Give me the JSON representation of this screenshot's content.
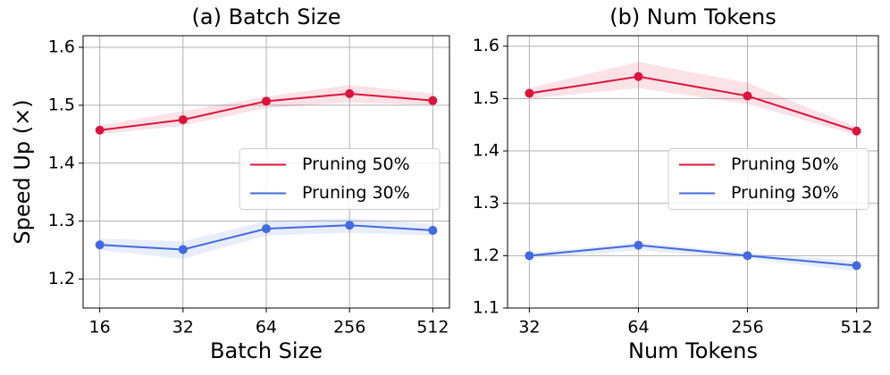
{
  "chart_data": [
    {
      "type": "line",
      "title": "(a) Batch Size",
      "xlabel": "Batch Size",
      "ylabel": "Speed Up (×)",
      "categories": [
        "16",
        "32",
        "64",
        "256",
        "512"
      ],
      "series": [
        {
          "name": "Pruning 50%",
          "color": "#dc143c",
          "values": [
            1.457,
            1.475,
            1.507,
            1.52,
            1.508
          ],
          "upper": [
            1.465,
            1.49,
            1.515,
            1.535,
            1.52
          ],
          "lower": [
            1.45,
            1.465,
            1.495,
            1.505,
            1.5
          ]
        },
        {
          "name": "Pruning 30%",
          "color": "#4169e1",
          "values": [
            1.259,
            1.251,
            1.287,
            1.293,
            1.284
          ],
          "upper": [
            1.27,
            1.265,
            1.3,
            1.305,
            1.295
          ],
          "lower": [
            1.25,
            1.235,
            1.275,
            1.28,
            1.275
          ]
        }
      ],
      "ylim": [
        1.15,
        1.62
      ],
      "yticks": [
        1.2,
        1.3,
        1.4,
        1.5,
        1.6
      ],
      "grid": true,
      "legend": "center right"
    },
    {
      "type": "line",
      "title": "(b) Num Tokens",
      "xlabel": "Num Tokens",
      "categories": [
        "32",
        "64",
        "256",
        "512"
      ],
      "series": [
        {
          "name": "Pruning 50%",
          "color": "#dc143c",
          "values": [
            1.51,
            1.542,
            1.505,
            1.438
          ],
          "upper": [
            1.52,
            1.57,
            1.53,
            1.445
          ],
          "lower": [
            1.5,
            1.52,
            1.49,
            1.43
          ]
        },
        {
          "name": "Pruning 30%",
          "color": "#4169e1",
          "values": [
            1.2,
            1.22,
            1.2,
            1.181
          ],
          "upper": [
            1.205,
            1.225,
            1.205,
            1.19
          ],
          "lower": [
            1.195,
            1.21,
            1.195,
            1.17
          ]
        }
      ],
      "ylim": [
        1.1,
        1.62
      ],
      "yticks": [
        1.1,
        1.2,
        1.3,
        1.4,
        1.5,
        1.6
      ],
      "grid": true,
      "legend": "center right"
    }
  ]
}
